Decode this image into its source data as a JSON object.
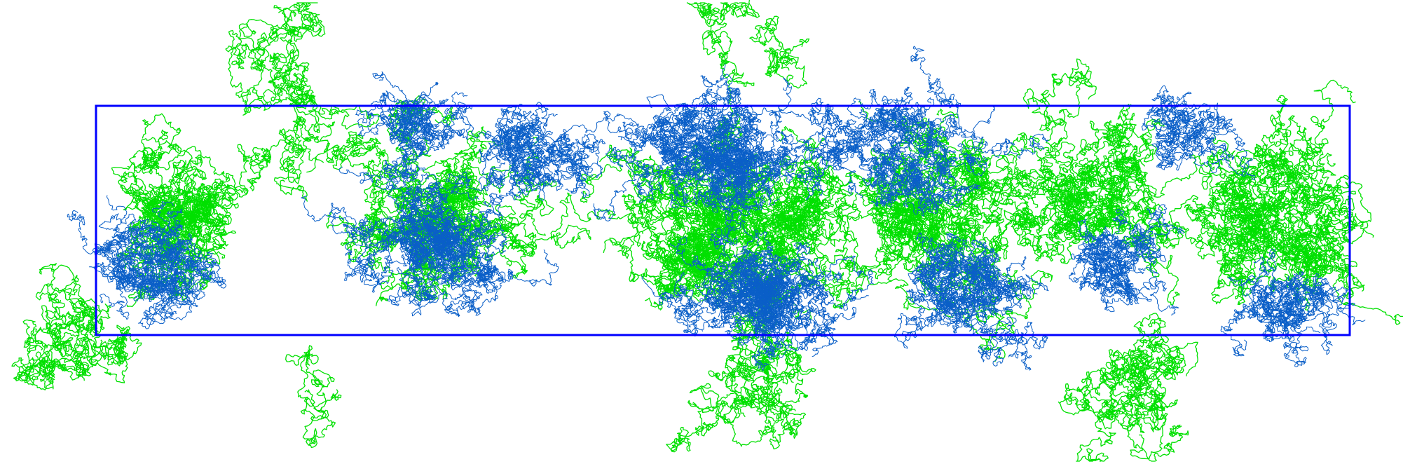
{
  "scene": {
    "background_color": "#ffffff",
    "box_color": "#0000ff",
    "chain_types": [
      {
        "name_key": "type-a",
        "color": "#00e000"
      },
      {
        "name_key": "type-b",
        "color": "#0a5fc8"
      }
    ]
  }
}
